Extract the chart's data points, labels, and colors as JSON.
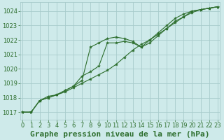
{
  "title": "Graphe pression niveau de la mer (hPa)",
  "bg_color": "#ceeaea",
  "grid_color": "#a8cccc",
  "line_color": "#2d6e2d",
  "marker_color": "#2d6e2d",
  "tick_label_color": "#2d6e2d",
  "ylim": [
    1016.5,
    1024.6
  ],
  "yticks": [
    1017,
    1018,
    1019,
    1020,
    1021,
    1022,
    1023,
    1024
  ],
  "xlim": [
    -0.3,
    23.3
  ],
  "xticks": [
    0,
    1,
    2,
    3,
    4,
    5,
    6,
    7,
    8,
    9,
    10,
    11,
    12,
    13,
    14,
    15,
    16,
    17,
    18,
    19,
    20,
    21,
    22,
    23
  ],
  "series": [
    [
      1017.0,
      1017.0,
      1017.8,
      1018.0,
      1018.2,
      1018.5,
      1018.8,
      1019.2,
      1021.5,
      1021.8,
      1022.1,
      1022.2,
      1022.1,
      1021.9,
      1021.5,
      1022.0,
      1022.5,
      1023.0,
      1023.5,
      1023.8,
      1024.0,
      1024.1,
      1024.2,
      1024.3
    ],
    [
      1017.0,
      1017.0,
      1017.8,
      1018.1,
      1018.2,
      1018.5,
      1018.8,
      1019.5,
      1019.8,
      1020.2,
      1021.8,
      1021.8,
      1021.9,
      1021.8,
      1021.5,
      1021.8,
      1022.3,
      1022.8,
      1023.3,
      1023.6,
      1024.0,
      1024.1,
      1024.2,
      1024.3
    ],
    [
      1017.0,
      1017.0,
      1017.8,
      1018.0,
      1018.2,
      1018.4,
      1018.7,
      1019.0,
      1019.3,
      1019.6,
      1019.9,
      1020.3,
      1020.8,
      1021.3,
      1021.7,
      1022.0,
      1022.4,
      1022.8,
      1023.2,
      1023.6,
      1023.9,
      1024.1,
      1024.2,
      1024.3
    ]
  ],
  "title_fontsize": 8,
  "tick_fontsize": 6
}
